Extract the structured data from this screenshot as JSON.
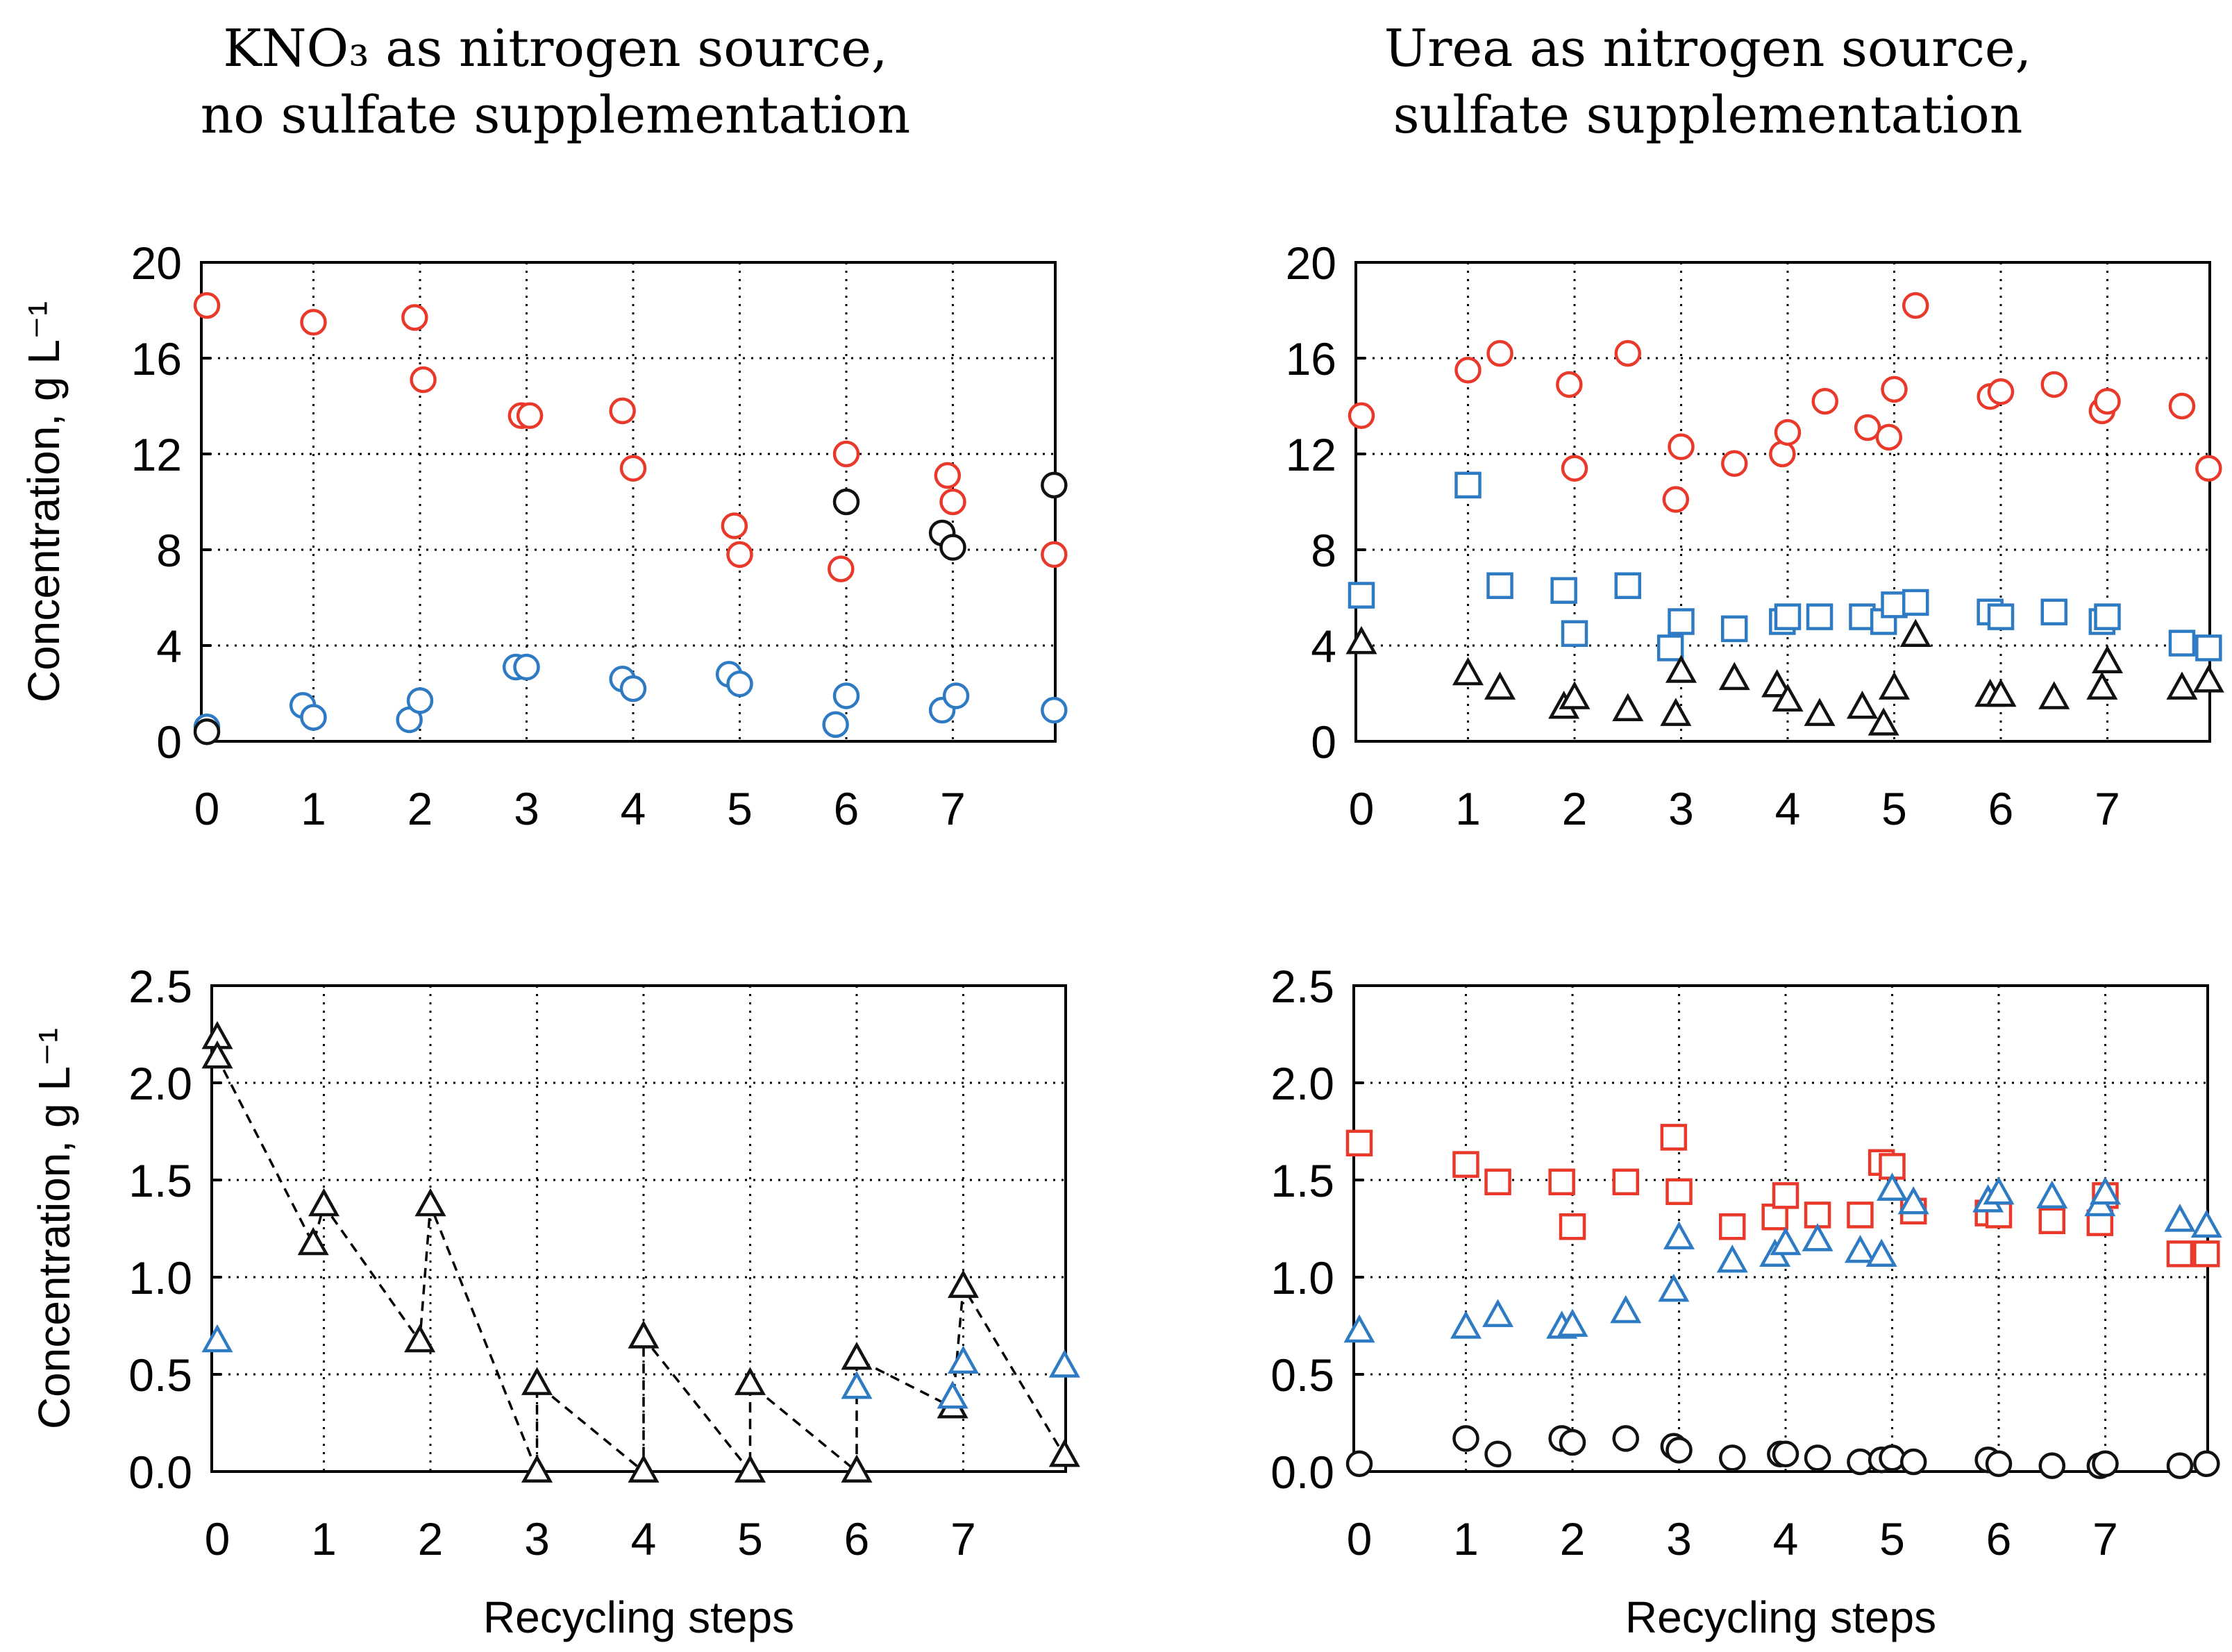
{
  "titles": {
    "left_line1": "KNO₃ as nitrogen source,",
    "left_line2": "no sulfate supplementation",
    "right_line1": "Urea as nitrogen source,",
    "right_line2": "sulfate supplementation"
  },
  "colors": {
    "red": "#e8392b",
    "blue": "#2e7bc4",
    "black": "#111111"
  },
  "chart_data": [
    {
      "id": "top-left",
      "type": "scatter",
      "title": "KNO₃ as nitrogen source, no sulfate supplementation",
      "ylabel": "Concentration,  g L⁻¹",
      "xlabel": "",
      "xlim": [
        0,
        8
      ],
      "ylim": [
        0,
        20
      ],
      "xticks": [
        "0",
        "1",
        "2",
        "3",
        "4",
        "5",
        "6",
        "7"
      ],
      "yticks": [
        "0",
        "4",
        "8",
        "12",
        "16",
        "20"
      ],
      "grid": true,
      "series": [
        {
          "name": "red circles",
          "marker": "circle",
          "color": "#e8392b",
          "x": [
            0,
            1,
            1.95,
            2.03,
            2.95,
            3.03,
            3.9,
            4.0,
            4.95,
            5.0,
            5.95,
            6.0,
            6.95,
            7.0,
            7.95
          ],
          "y": [
            18.2,
            17.5,
            17.7,
            15.1,
            13.6,
            13.6,
            13.8,
            11.4,
            9.0,
            7.8,
            7.2,
            12.0,
            11.1,
            10.0,
            7.8
          ]
        },
        {
          "name": "blue circles",
          "marker": "circle",
          "color": "#2e7bc4",
          "x": [
            0,
            0.9,
            1.0,
            1.9,
            2.0,
            2.9,
            3.0,
            3.9,
            4.0,
            4.9,
            5.0,
            5.9,
            6.0,
            6.9,
            7.03,
            7.95
          ],
          "y": [
            0.6,
            1.5,
            1.0,
            0.9,
            1.7,
            3.1,
            3.1,
            2.6,
            2.2,
            2.8,
            2.4,
            0.7,
            1.9,
            1.3,
            1.9,
            1.3
          ]
        },
        {
          "name": "black circles",
          "marker": "circle",
          "color": "#111111",
          "x": [
            0,
            6.0,
            6.9,
            7.0,
            7.95
          ],
          "y": [
            0.4,
            10.0,
            8.7,
            8.1,
            10.7
          ]
        }
      ]
    },
    {
      "id": "top-right",
      "type": "scatter",
      "title": "Urea as nitrogen source, sulfate supplementation",
      "ylabel": "",
      "xlabel": "",
      "xlim": [
        0,
        8
      ],
      "ylim": [
        0,
        20
      ],
      "xticks": [
        "0",
        "1",
        "2",
        "3",
        "4",
        "5",
        "6",
        "7"
      ],
      "yticks": [
        "0",
        "4",
        "8",
        "12",
        "16",
        "20"
      ],
      "grid": true,
      "series": [
        {
          "name": "red circles",
          "marker": "circle",
          "color": "#e8392b",
          "x": [
            0,
            1.0,
            1.3,
            1.95,
            2.0,
            2.5,
            2.95,
            3.0,
            3.5,
            3.95,
            4.0,
            4.35,
            4.75,
            4.95,
            5.0,
            5.2,
            5.9,
            6.0,
            6.5,
            6.95,
            7.0,
            7.7,
            7.95
          ],
          "y": [
            13.6,
            15.5,
            16.2,
            14.9,
            11.4,
            16.2,
            10.1,
            12.3,
            11.6,
            12.0,
            12.9,
            14.2,
            13.1,
            12.7,
            14.7,
            18.2,
            14.4,
            14.6,
            14.9,
            13.8,
            14.2,
            14.0,
            11.4
          ]
        },
        {
          "name": "blue squares",
          "marker": "square",
          "color": "#2e7bc4",
          "x": [
            0,
            1.0,
            1.3,
            1.9,
            2.0,
            2.5,
            2.9,
            3.0,
            3.5,
            3.95,
            4.0,
            4.3,
            4.7,
            4.9,
            5.0,
            5.2,
            5.9,
            6.0,
            6.5,
            6.95,
            7.0,
            7.7,
            7.95
          ],
          "y": [
            6.1,
            10.7,
            6.5,
            6.3,
            4.5,
            6.5,
            3.9,
            5.0,
            4.7,
            5.0,
            5.2,
            5.2,
            5.2,
            5.0,
            5.7,
            5.8,
            5.4,
            5.2,
            5.4,
            5.0,
            5.2,
            4.1,
            3.9
          ]
        },
        {
          "name": "black triangles",
          "marker": "triangle",
          "color": "#111111",
          "x": [
            0,
            1.0,
            1.3,
            1.9,
            2.0,
            2.5,
            2.95,
            3.0,
            3.5,
            3.9,
            4.0,
            4.3,
            4.7,
            4.9,
            5.0,
            5.2,
            5.9,
            6.0,
            6.5,
            6.95,
            7.0,
            7.7,
            7.95
          ],
          "y": [
            4.1,
            2.8,
            2.2,
            1.4,
            1.8,
            1.3,
            1.1,
            2.9,
            2.6,
            2.3,
            1.7,
            1.1,
            1.4,
            0.7,
            2.2,
            4.4,
            1.9,
            1.9,
            1.8,
            2.2,
            3.3,
            2.2,
            2.5
          ]
        }
      ]
    },
    {
      "id": "bottom-left",
      "type": "scatter",
      "title": "",
      "ylabel": "Concentration,  g L⁻¹",
      "xlabel": "Recycling steps",
      "xlim": [
        0,
        8
      ],
      "ylim": [
        0,
        2.5
      ],
      "xticks": [
        "0",
        "1",
        "2",
        "3",
        "4",
        "5",
        "6",
        "7"
      ],
      "yticks": [
        "0.0",
        "0.5",
        "1.0",
        "1.5",
        "2.0",
        "2.5"
      ],
      "grid": true,
      "series": [
        {
          "name": "black triangles",
          "marker": "triangle",
          "color": "#111111",
          "dashed_line": true,
          "x": [
            0,
            0,
            0.9,
            1.0,
            1.9,
            2.0,
            3.0,
            3.0,
            4.0,
            4.0,
            5.0,
            5.0,
            6.0,
            6.0,
            6.9,
            7.0,
            7.95
          ],
          "y": [
            2.23,
            2.13,
            1.17,
            1.37,
            0.67,
            1.37,
            0.0,
            0.45,
            0.0,
            0.69,
            0.0,
            0.45,
            0.0,
            0.58,
            0.33,
            0.95,
            0.08
          ]
        },
        {
          "name": "blue triangles",
          "marker": "triangle",
          "color": "#2e7bc4",
          "x": [
            0,
            6.0,
            6.9,
            7.0,
            7.95
          ],
          "y": [
            0.67,
            0.43,
            0.38,
            0.56,
            0.54
          ]
        }
      ]
    },
    {
      "id": "bottom-right",
      "type": "scatter",
      "title": "",
      "ylabel": "",
      "xlabel": "Recycling steps",
      "xlim": [
        0,
        8
      ],
      "ylim": [
        0,
        2.5
      ],
      "xticks": [
        "0",
        "1",
        "2",
        "3",
        "4",
        "5",
        "6",
        "7"
      ],
      "yticks": [
        "0.0",
        "0.5",
        "1.0",
        "1.5",
        "2.0",
        "2.5"
      ],
      "grid": true,
      "series": [
        {
          "name": "red squares",
          "marker": "square",
          "color": "#e8392b",
          "x": [
            0,
            1.0,
            1.3,
            1.9,
            2.0,
            2.5,
            2.95,
            3.0,
            3.5,
            3.9,
            4.0,
            4.3,
            4.7,
            4.9,
            5.0,
            5.2,
            5.9,
            6.0,
            6.5,
            6.95,
            7.0,
            7.7,
            7.95
          ],
          "y": [
            1.69,
            1.58,
            1.49,
            1.49,
            1.26,
            1.49,
            1.72,
            1.44,
            1.26,
            1.31,
            1.42,
            1.32,
            1.32,
            1.59,
            1.57,
            1.34,
            1.33,
            1.32,
            1.29,
            1.28,
            1.42,
            1.12,
            1.12
          ]
        },
        {
          "name": "blue triangles",
          "marker": "triangle",
          "color": "#2e7bc4",
          "x": [
            0,
            1.0,
            1.3,
            1.9,
            2.0,
            2.5,
            2.95,
            3.0,
            3.5,
            3.9,
            4.0,
            4.3,
            4.7,
            4.9,
            5.0,
            5.2,
            5.9,
            6.0,
            6.5,
            6.95,
            7.0,
            7.7,
            7.95
          ],
          "y": [
            0.72,
            0.74,
            0.8,
            0.74,
            0.75,
            0.82,
            0.93,
            1.2,
            1.08,
            1.11,
            1.17,
            1.19,
            1.13,
            1.11,
            1.45,
            1.38,
            1.39,
            1.43,
            1.41,
            1.37,
            1.43,
            1.29,
            1.26
          ]
        },
        {
          "name": "black circles",
          "marker": "circle",
          "color": "#111111",
          "x": [
            0,
            1.0,
            1.3,
            1.9,
            2.0,
            2.5,
            2.95,
            3.0,
            3.5,
            3.95,
            4.0,
            4.3,
            4.7,
            4.9,
            5.0,
            5.2,
            5.9,
            6.0,
            6.5,
            6.95,
            7.0,
            7.7,
            7.95
          ],
          "y": [
            0.04,
            0.17,
            0.09,
            0.17,
            0.15,
            0.17,
            0.13,
            0.11,
            0.07,
            0.09,
            0.09,
            0.07,
            0.05,
            0.06,
            0.07,
            0.05,
            0.06,
            0.04,
            0.03,
            0.03,
            0.04,
            0.03,
            0.04
          ]
        }
      ]
    }
  ]
}
